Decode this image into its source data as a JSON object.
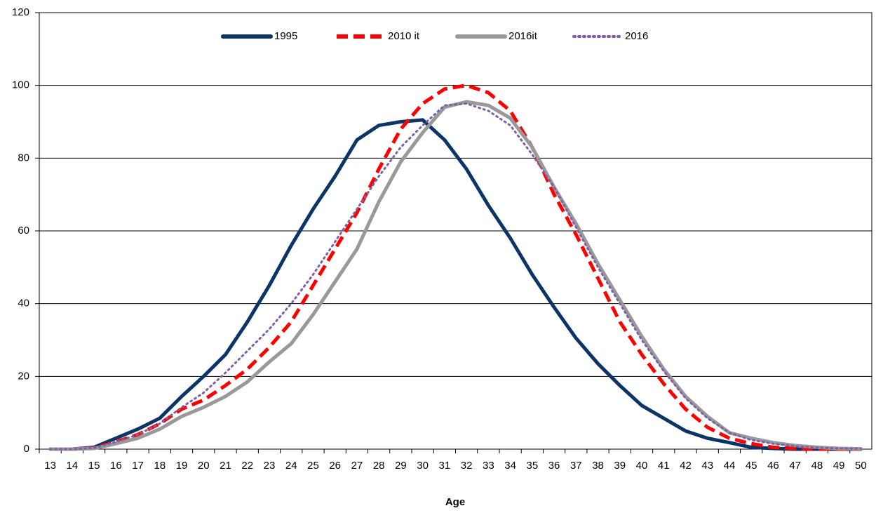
{
  "chart_data": {
    "type": "line",
    "x_label": "Age",
    "categories": [
      "13",
      "14",
      "15",
      "16",
      "17",
      "18",
      "19",
      "20",
      "21",
      "22",
      "23",
      "24",
      "25",
      "26",
      "27",
      "28",
      "29",
      "30",
      "31",
      "32",
      "33",
      "34",
      "35",
      "36",
      "37",
      "38",
      "39",
      "40",
      "41",
      "42",
      "43",
      "44",
      "45",
      "46",
      "47",
      "48",
      "49",
      "50"
    ],
    "series": [
      {
        "name": "1995",
        "color": "#0b3467",
        "dash": "solid",
        "values": [
          0,
          0,
          0.5,
          3,
          5.5,
          8.5,
          14.5,
          20,
          26,
          35,
          45,
          56,
          66,
          75,
          85,
          89,
          90,
          90.5,
          85,
          77,
          67,
          58,
          48,
          39,
          30.5,
          23.5,
          17.5,
          12,
          8.5,
          5,
          3,
          1.8,
          0.5,
          0.2,
          0,
          0,
          0,
          0
        ]
      },
      {
        "name": "2010 it",
        "color": "#ff0000",
        "dash": "dashed",
        "values": [
          0,
          0,
          0.3,
          2,
          4,
          7,
          11,
          13.5,
          17.5,
          22,
          28,
          35,
          45,
          55,
          65,
          77,
          88,
          95,
          99,
          100,
          98,
          93,
          83,
          70,
          59,
          47,
          35,
          26,
          18,
          11,
          6,
          3,
          1.5,
          0.5,
          0.2,
          0,
          0,
          0
        ]
      },
      {
        "name": "2016it",
        "color": "#999999",
        "dash": "solid",
        "values": [
          0,
          0,
          0.2,
          1.5,
          3,
          5.5,
          9,
          11.5,
          14.5,
          18.5,
          24,
          29,
          37,
          46,
          55,
          68,
          79,
          87,
          94,
          95.5,
          94.5,
          91,
          83,
          72,
          62,
          51,
          41,
          31,
          22,
          14.5,
          9,
          4.5,
          3,
          1.8,
          1,
          0.5,
          0.2,
          0.1
        ]
      },
      {
        "name": "2016",
        "color": "#7f60a5",
        "dash": "dotted",
        "values": [
          0,
          0,
          0.3,
          2,
          4,
          7,
          11.5,
          15.5,
          21,
          27,
          33,
          40,
          48,
          57,
          66,
          75,
          83,
          89,
          94.5,
          95,
          93,
          89,
          81,
          72,
          61,
          50,
          40,
          30,
          21.5,
          14,
          8.5,
          4.5,
          2.5,
          1.5,
          0.8,
          0.4,
          0.2,
          0.1
        ]
      }
    ],
    "ylim": [
      0,
      120
    ],
    "yticks": [
      0,
      20,
      40,
      60,
      80,
      100,
      120
    ],
    "grid": true,
    "legend": "top"
  }
}
